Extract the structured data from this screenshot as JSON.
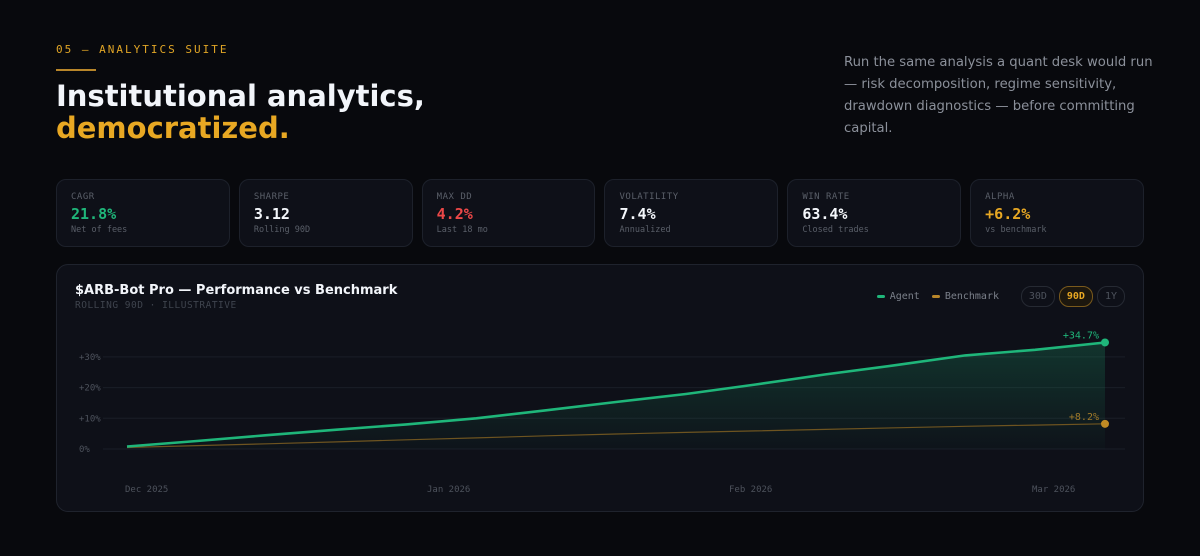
{
  "header": {
    "eyebrow": "05 — ANALYTICS SUITE",
    "title_line1": "Institutional analytics,",
    "title_line2": "democratized.",
    "lede": "Run the same analysis a quant desk would run — risk decomposition, regime sensitivity, drawdown diagnostics — before committing capital."
  },
  "stats": [
    {
      "label": "CAGR",
      "value": "21.8%",
      "sub": "Net of fees",
      "color": "#1fb67a"
    },
    {
      "label": "SHARPE",
      "value": "3.12",
      "sub": "Rolling 90D",
      "color": "#f4f7fb"
    },
    {
      "label": "MAX DD",
      "value": "4.2%",
      "sub": "Last 18 mo",
      "color": "#ec4848"
    },
    {
      "label": "VOLATILITY",
      "value": "7.4%",
      "sub": "Annualized",
      "color": "#f4f7fb"
    },
    {
      "label": "WIN RATE",
      "value": "63.4%",
      "sub": "Closed trades",
      "color": "#f4f7fb"
    },
    {
      "label": "ALPHA",
      "value": "+6.2%",
      "sub": "vs benchmark",
      "color": "#e8a823"
    }
  ],
  "chart": {
    "title": "$ARB-Bot Pro — Performance vs Benchmark",
    "subtitle": "ROLLING 90D · ILLUSTRATIVE",
    "legend": {
      "agent": "Agent",
      "benchmark": "Benchmark"
    },
    "ranges": [
      {
        "label": "30D",
        "active": false
      },
      {
        "label": "90D",
        "active": true
      },
      {
        "label": "1Y",
        "active": false
      }
    ],
    "end_labels": {
      "agent": "+34.7%",
      "benchmark": "+8.2%"
    }
  },
  "chart_data": {
    "type": "line",
    "title": "$ARB-Bot Pro — Performance vs Benchmark",
    "subtitle": "ROLLING 90D · ILLUSTRATIVE",
    "xlabel": "",
    "ylabel": "",
    "x_tick_labels": [
      "Dec 2025",
      "Jan 2026",
      "Feb 2026",
      "Mar 2026"
    ],
    "y_tick_labels": [
      "0%",
      "+10%",
      "+20%",
      "+30%"
    ],
    "y_ticks": [
      0,
      10,
      20,
      30
    ],
    "ylim": [
      0,
      34.7
    ],
    "grid": true,
    "legend_position": "top-right",
    "x": [
      0,
      1,
      2,
      3,
      4,
      5,
      6,
      7,
      8,
      9,
      10,
      11,
      12,
      13,
      14
    ],
    "series": [
      {
        "name": "Agent",
        "color": "#1fb67a",
        "values": [
          0.8,
          2.6,
          4.5,
          6.3,
          8.0,
          10.0,
          12.6,
          15.3,
          17.9,
          21.0,
          24.3,
          27.3,
          30.5,
          32.3,
          34.7
        ]
      },
      {
        "name": "Benchmark",
        "color": "#b8862a",
        "values": [
          0.5,
          1.1,
          1.7,
          2.3,
          3.0,
          3.6,
          4.3,
          4.9,
          5.4,
          5.9,
          6.4,
          6.9,
          7.4,
          7.8,
          8.2
        ]
      }
    ],
    "annotations": [
      {
        "series": "Agent",
        "text": "+34.7%"
      },
      {
        "series": "Benchmark",
        "text": "+8.2%"
      }
    ]
  }
}
